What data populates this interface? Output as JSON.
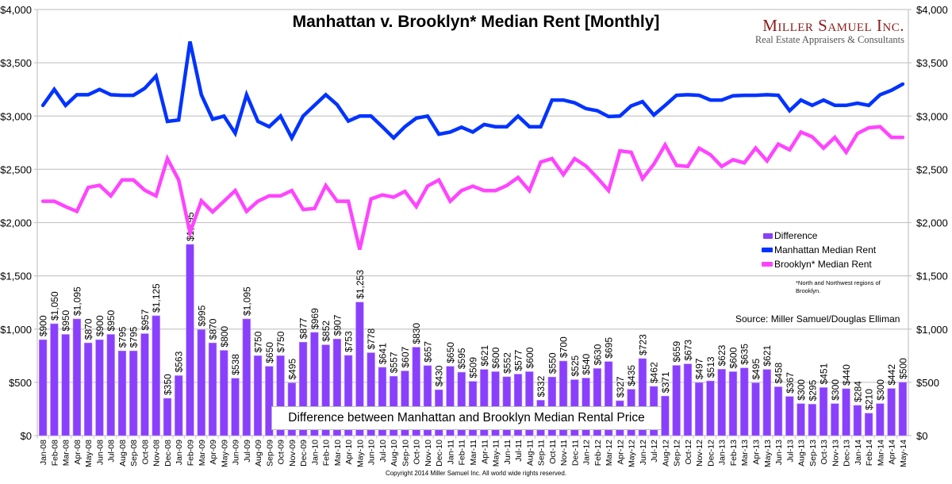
{
  "header": {
    "title": "Manhattan v. Brooklyn* Median Rent [Monthly]"
  },
  "logo": {
    "name": "Miller Samuel Inc.",
    "tagline": "Real Estate Appraisers & Consultants"
  },
  "legend": {
    "items": [
      {
        "label": "Difference",
        "color": "#8a3ffc"
      },
      {
        "label": "Manhattan Median Rent",
        "color": "#0033ff"
      },
      {
        "label": "Brooklyn* Median Rent",
        "color": "#ff44ff"
      }
    ]
  },
  "footnote": "*North and Northwest regions of Brooklyn.",
  "source": "Source: Miller Samuel/Douglas Elliman",
  "annotation": "Difference between Manhattan and Brooklyn Median Rental Price",
  "copyright": "Copyright 2014 Miller Samuel Inc.  All world wide rights reserved.",
  "chart_data": {
    "type": "bar+line",
    "title": "Manhattan v. Brooklyn* Median Rent [Monthly]",
    "ylim": [
      0,
      4000
    ],
    "yticks": [
      "$0",
      "$500",
      "$1,000",
      "$1,500",
      "$2,000",
      "$2,500",
      "$3,000",
      "$3,500",
      "$4,000"
    ],
    "ytick_values": [
      0,
      500,
      1000,
      1500,
      2000,
      2500,
      3000,
      3500,
      4000
    ],
    "grid": true,
    "legend_position": "right",
    "categories": [
      "Jan-08",
      "Feb-08",
      "Mar-08",
      "Apr-08",
      "May-08",
      "Jun-08",
      "Jul-08",
      "Aug-08",
      "Sep-08",
      "Oct-08",
      "Nov-08",
      "Dec-08",
      "Jan-09",
      "Feb-09",
      "Mar-09",
      "Apr-09",
      "May-09",
      "Jun-09",
      "Jul-09",
      "Aug-09",
      "Sep-09",
      "Oct-09",
      "Nov-09",
      "Dec-09",
      "Jan-10",
      "Feb-10",
      "Mar-10",
      "Apr-10",
      "May-10",
      "Jun-10",
      "Jul-10",
      "Aug-10",
      "Sep-10",
      "Oct-10",
      "Nov-10",
      "Dec-10",
      "Jan-11",
      "Feb-11",
      "Mar-11",
      "Apr-11",
      "May-11",
      "Jun-11",
      "Jul-11",
      "Aug-11",
      "Sep-11",
      "Oct-11",
      "Nov-11",
      "Dec-11",
      "Jan-12",
      "Feb-12",
      "Mar-12",
      "Apr-12",
      "May-12",
      "Jun-12",
      "Jul-12",
      "Aug-12",
      "Sep-12",
      "Oct-12",
      "Nov-12",
      "Dec-12",
      "Jan-13",
      "Feb-13",
      "Mar-13",
      "Apr-13",
      "May-13",
      "Jun-13",
      "Jul-13",
      "Aug-13",
      "Sep-13",
      "Oct-13",
      "Nov-13",
      "Dec-13",
      "Jan-14",
      "Feb-14",
      "Mar-14",
      "Apr-14",
      "May-14"
    ],
    "series": [
      {
        "name": "Difference",
        "type": "bar",
        "values": [
          900,
          1050,
          950,
          1095,
          870,
          900,
          950,
          795,
          795,
          957,
          1125,
          350,
          563,
          1795,
          995,
          870,
          800,
          538,
          1095,
          750,
          650,
          750,
          495,
          877,
          969,
          852,
          907,
          753,
          1253,
          778,
          641,
          557,
          607,
          830,
          657,
          430,
          650,
          595,
          509,
          621,
          600,
          552,
          577,
          600,
          332,
          550,
          700,
          525,
          540,
          630,
          695,
          327,
          435,
          723,
          462,
          371,
          659,
          673,
          497,
          513,
          623,
          600,
          635,
          495,
          621,
          458,
          367,
          300,
          295,
          451,
          300,
          440,
          284,
          210,
          300,
          442,
          500
        ],
        "labels": [
          "$900",
          "$1,050",
          "$950",
          "$1,095",
          "$870",
          "$900",
          "$950",
          "$795",
          "$795",
          "$957",
          "$1,125",
          "$350",
          "$563",
          "$1,795",
          "$995",
          "$870",
          "$800",
          "$538",
          "$1,095",
          "$750",
          "$650",
          "$750",
          "$495",
          "$877",
          "$969",
          "$852",
          "$907",
          "$753",
          "$1,253",
          "$778",
          "$641",
          "$557",
          "$607",
          "$830",
          "$657",
          "$430",
          "$650",
          "$595",
          "$509",
          "$621",
          "$600",
          "$552",
          "$577",
          "$600",
          "$332",
          "$550",
          "$700",
          "$525",
          "$540",
          "$630",
          "$695",
          "$327",
          "$435",
          "$723",
          "$462",
          "$371",
          "$659",
          "$673",
          "$497",
          "$513",
          "$623",
          "$600",
          "$635",
          "$495",
          "$621",
          "$458",
          "$367",
          "$300",
          "$295",
          "$451",
          "$300",
          "$440",
          "$284",
          "$210",
          "$300",
          "$442",
          "$500"
        ]
      },
      {
        "name": "Manhattan Median Rent",
        "type": "line",
        "values": [
          3100,
          3250,
          3100,
          3200,
          3200,
          3250,
          3200,
          3195,
          3195,
          3260,
          3375,
          2950,
          2963,
          3700,
          3200,
          2970,
          3000,
          2838,
          3200,
          2950,
          2900,
          3000,
          2795,
          3000,
          3100,
          3200,
          3107,
          2953,
          3000,
          3000,
          2900,
          2795,
          2900,
          2980,
          3000,
          2830,
          2850,
          2895,
          2850,
          2921,
          2900,
          2900,
          3000,
          2900,
          2900,
          3150,
          3150,
          3125,
          3070,
          3050,
          2995,
          3000,
          3095,
          3135,
          3010,
          3100,
          3195,
          3200,
          3195,
          3150,
          3150,
          3190,
          3195,
          3195,
          3200,
          3195,
          3050,
          3150,
          3100,
          3150,
          3100,
          3100,
          3120,
          3100,
          3200,
          3242,
          3300
        ]
      },
      {
        "name": "Brooklyn* Median Rent",
        "type": "line",
        "values": [
          2200,
          2200,
          2150,
          2105,
          2330,
          2350,
          2250,
          2400,
          2400,
          2303,
          2250,
          2600,
          2400,
          1905,
          2205,
          2100,
          2200,
          2300,
          2105,
          2200,
          2250,
          2250,
          2300,
          2123,
          2131,
          2348,
          2200,
          2200,
          1747,
          2222,
          2259,
          2238,
          2293,
          2150,
          2343,
          2400,
          2200,
          2300,
          2341,
          2300,
          2300,
          2348,
          2423,
          2300,
          2568,
          2600,
          2450,
          2600,
          2530,
          2420,
          2300,
          2673,
          2660,
          2412,
          2548,
          2729,
          2536,
          2527,
          2698,
          2637,
          2527,
          2590,
          2560,
          2700,
          2579,
          2737,
          2683,
          2850,
          2805,
          2699,
          2800,
          2660,
          2836,
          2890,
          2900,
          2800,
          2800
        ]
      }
    ]
  }
}
